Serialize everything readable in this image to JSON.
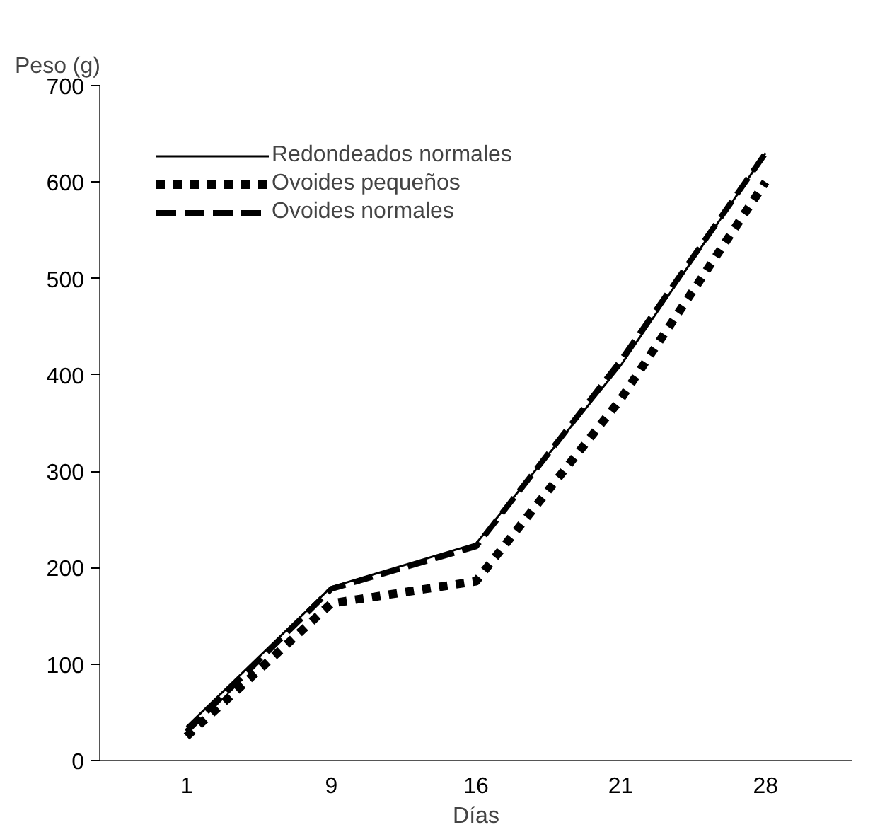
{
  "chart_data": {
    "type": "line",
    "ylabel": "Peso (g)",
    "xlabel": "Días",
    "categories": [
      "1",
      "9",
      "16",
      "21",
      "28"
    ],
    "ylim": [
      0,
      700
    ],
    "yticks": [
      0,
      100,
      200,
      300,
      400,
      500,
      600,
      700
    ],
    "grid": false,
    "legend": "top left",
    "marker": "none",
    "series": [
      {
        "name": "Redondeados normales",
        "color": "#000000",
        "line_style": "solid",
        "values": [
          35,
          180,
          225,
          410,
          630
        ]
      },
      {
        "name": "Ovoides pequeños",
        "color": "#000000",
        "line_style": "dotted",
        "values": [
          25,
          163,
          186,
          375,
          600
        ]
      },
      {
        "name": "Ovoides normales",
        "color": "#000000",
        "line_style": "dashed",
        "values": [
          30,
          178,
          222,
          415,
          630
        ]
      }
    ]
  }
}
